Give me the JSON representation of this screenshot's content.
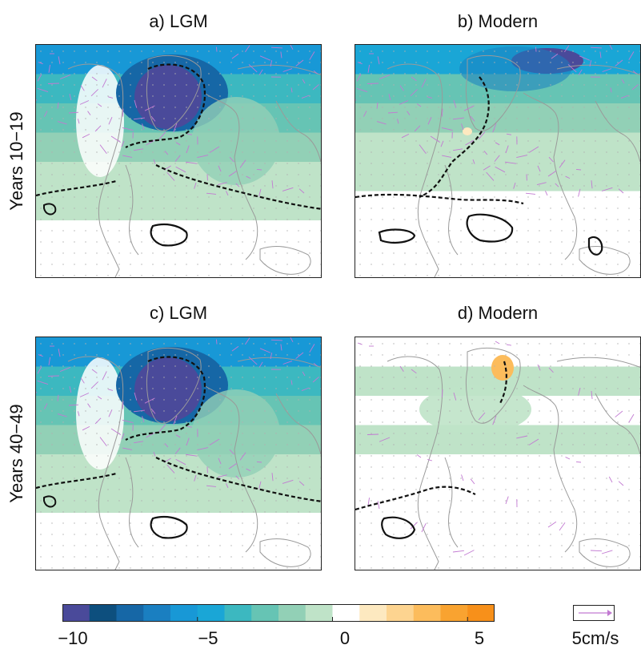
{
  "panels": [
    {
      "id": "a",
      "title": "a) LGM",
      "variant": "lgm"
    },
    {
      "id": "b",
      "title": "b) Modern",
      "variant": "modern-strong"
    },
    {
      "id": "c",
      "title": "c) LGM",
      "variant": "lgm"
    },
    {
      "id": "d",
      "title": "d) Modern",
      "variant": "modern-weak"
    }
  ],
  "rows": [
    {
      "label": "Years 10−19"
    },
    {
      "label": "Years 40−49"
    }
  ],
  "colorbar": {
    "range": [
      -10,
      6
    ],
    "step": 1,
    "colors": [
      "#4a4a9a",
      "#0d4f7e",
      "#1667a6",
      "#1a7fc1",
      "#1898d6",
      "#1aa6d6",
      "#3cb8c0",
      "#66c4b4",
      "#92d0b6",
      "#bfe3c8",
      "#ffffff",
      "#fde9c0",
      "#fdd490",
      "#fcbc5c",
      "#f9a330",
      "#f7901a"
    ],
    "ticks": [
      {
        "value": -10,
        "label": "−10"
      },
      {
        "value": -5,
        "label": "−5"
      },
      {
        "value": 0,
        "label": "0"
      },
      {
        "value": 5,
        "label": "5"
      }
    ]
  },
  "reference_vector": {
    "label": "5cm/s",
    "color": "#c27ad2"
  },
  "colors": {
    "land_outline": "#9a9a9a",
    "vector": "#c27ad2",
    "contour": "#111111",
    "dot": "#b0b0b0"
  }
}
